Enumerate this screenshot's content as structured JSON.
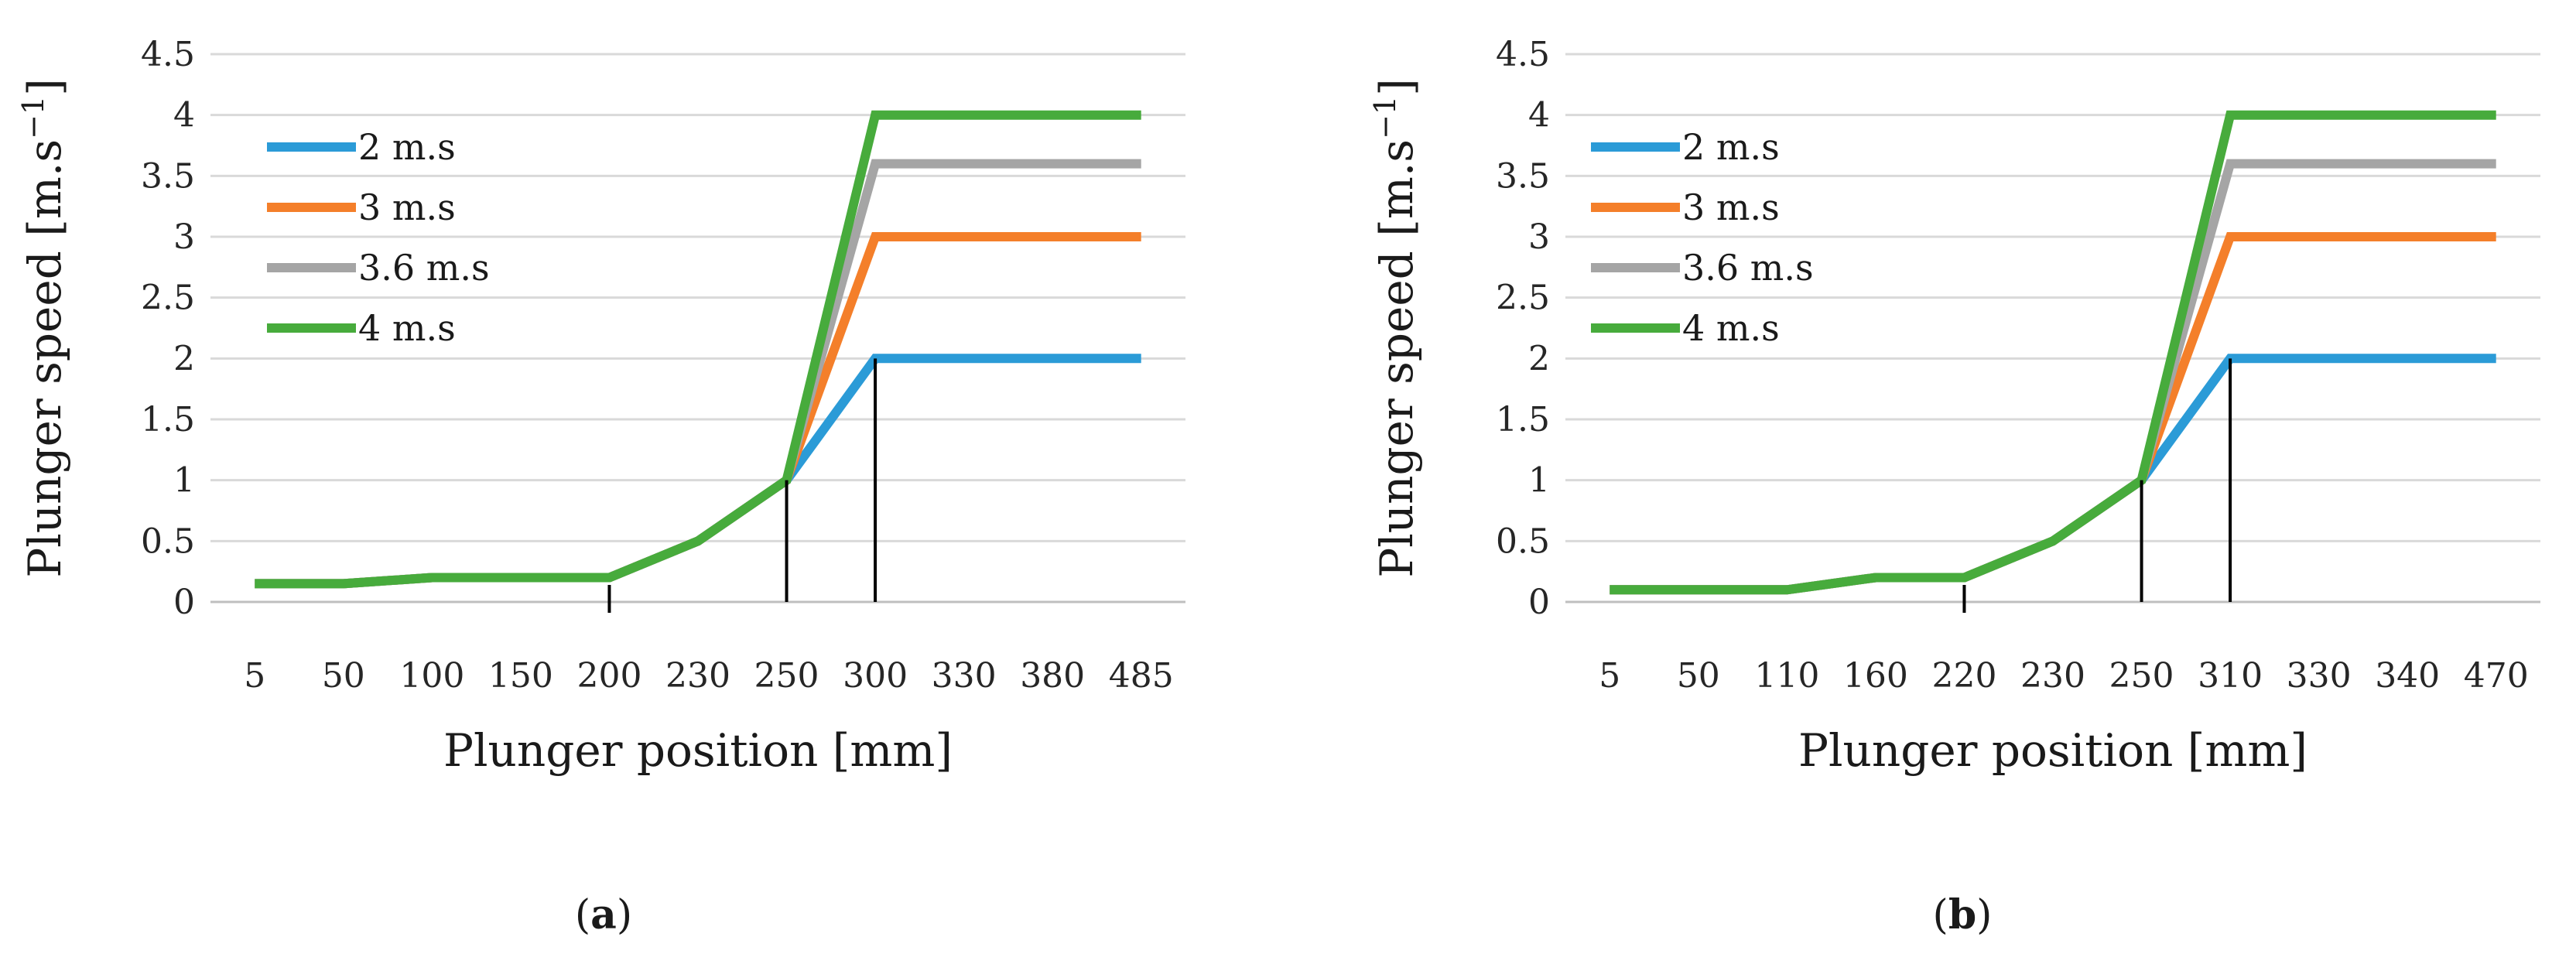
{
  "chart_data": [
    {
      "type": "line",
      "panel_label": "a",
      "xlabel": "Plunger position [mm]",
      "ylabel_main": "Plunger speed [m.s",
      "ylabel_sup": "−1",
      "ylabel_close": "]",
      "categories": [
        "5",
        "50",
        "100",
        "150",
        "200",
        "230",
        "250",
        "300",
        "330",
        "380",
        "485"
      ],
      "yticks": [
        "0",
        "0.5",
        "1",
        "1.5",
        "2",
        "2.5",
        "3",
        "3.5",
        "4",
        "4.5"
      ],
      "ylim": [
        0,
        4.5
      ],
      "grid": true,
      "legend_position": "top-left",
      "series": [
        {
          "name": "2 m.s",
          "color": "#2b9bd7",
          "values": [
            0.15,
            0.15,
            0.2,
            0.2,
            0.2,
            0.5,
            1,
            2,
            2,
            2,
            2
          ]
        },
        {
          "name": "3 m.s",
          "color": "#f47f2a",
          "values": [
            0.15,
            0.15,
            0.2,
            0.2,
            0.2,
            0.5,
            1,
            3,
            3,
            3,
            3
          ]
        },
        {
          "name": "3.6 m.s",
          "color": "#a5a5a5",
          "values": [
            0.15,
            0.15,
            0.2,
            0.2,
            0.2,
            0.5,
            1,
            3.6,
            3.6,
            3.6,
            3.6
          ]
        },
        {
          "name": "4 m.s",
          "color": "#47ab3c",
          "values": [
            0.15,
            0.15,
            0.2,
            0.2,
            0.2,
            0.5,
            1,
            4,
            4,
            4,
            4
          ]
        }
      ],
      "markers": [
        {
          "category_index": 4,
          "to_value": 0
        },
        {
          "category_index": 6,
          "to_value": 1
        },
        {
          "category_index": 7,
          "to_value": 2
        }
      ]
    },
    {
      "type": "line",
      "panel_label": "b",
      "xlabel": "Plunger position [mm]",
      "ylabel_main": "Plunger speed [m.s",
      "ylabel_sup": "−1",
      "ylabel_close": "]",
      "categories": [
        "5",
        "50",
        "110",
        "160",
        "220",
        "230",
        "250",
        "310",
        "330",
        "340",
        "470"
      ],
      "yticks": [
        "0",
        "0.5",
        "1",
        "1.5",
        "2",
        "2.5",
        "3",
        "3.5",
        "4",
        "4.5"
      ],
      "ylim": [
        0,
        4.5
      ],
      "grid": true,
      "legend_position": "top-left",
      "series": [
        {
          "name": "2 m.s",
          "color": "#2b9bd7",
          "values": [
            0.1,
            0.1,
            0.1,
            0.2,
            0.2,
            0.5,
            1,
            2,
            2,
            2,
            2
          ]
        },
        {
          "name": "3 m.s",
          "color": "#f47f2a",
          "values": [
            0.1,
            0.1,
            0.1,
            0.2,
            0.2,
            0.5,
            1,
            3,
            3,
            3,
            3
          ]
        },
        {
          "name": "3.6 m.s",
          "color": "#a5a5a5",
          "values": [
            0.1,
            0.1,
            0.1,
            0.2,
            0.2,
            0.5,
            1,
            3.6,
            3.6,
            3.6,
            3.6
          ]
        },
        {
          "name": "4 m.s",
          "color": "#47ab3c",
          "values": [
            0.1,
            0.1,
            0.1,
            0.2,
            0.2,
            0.5,
            1,
            4,
            4,
            4,
            4
          ]
        }
      ],
      "markers": [
        {
          "category_index": 4,
          "to_value": 0
        },
        {
          "category_index": 6,
          "to_value": 1
        },
        {
          "category_index": 7,
          "to_value": 2
        }
      ]
    }
  ]
}
